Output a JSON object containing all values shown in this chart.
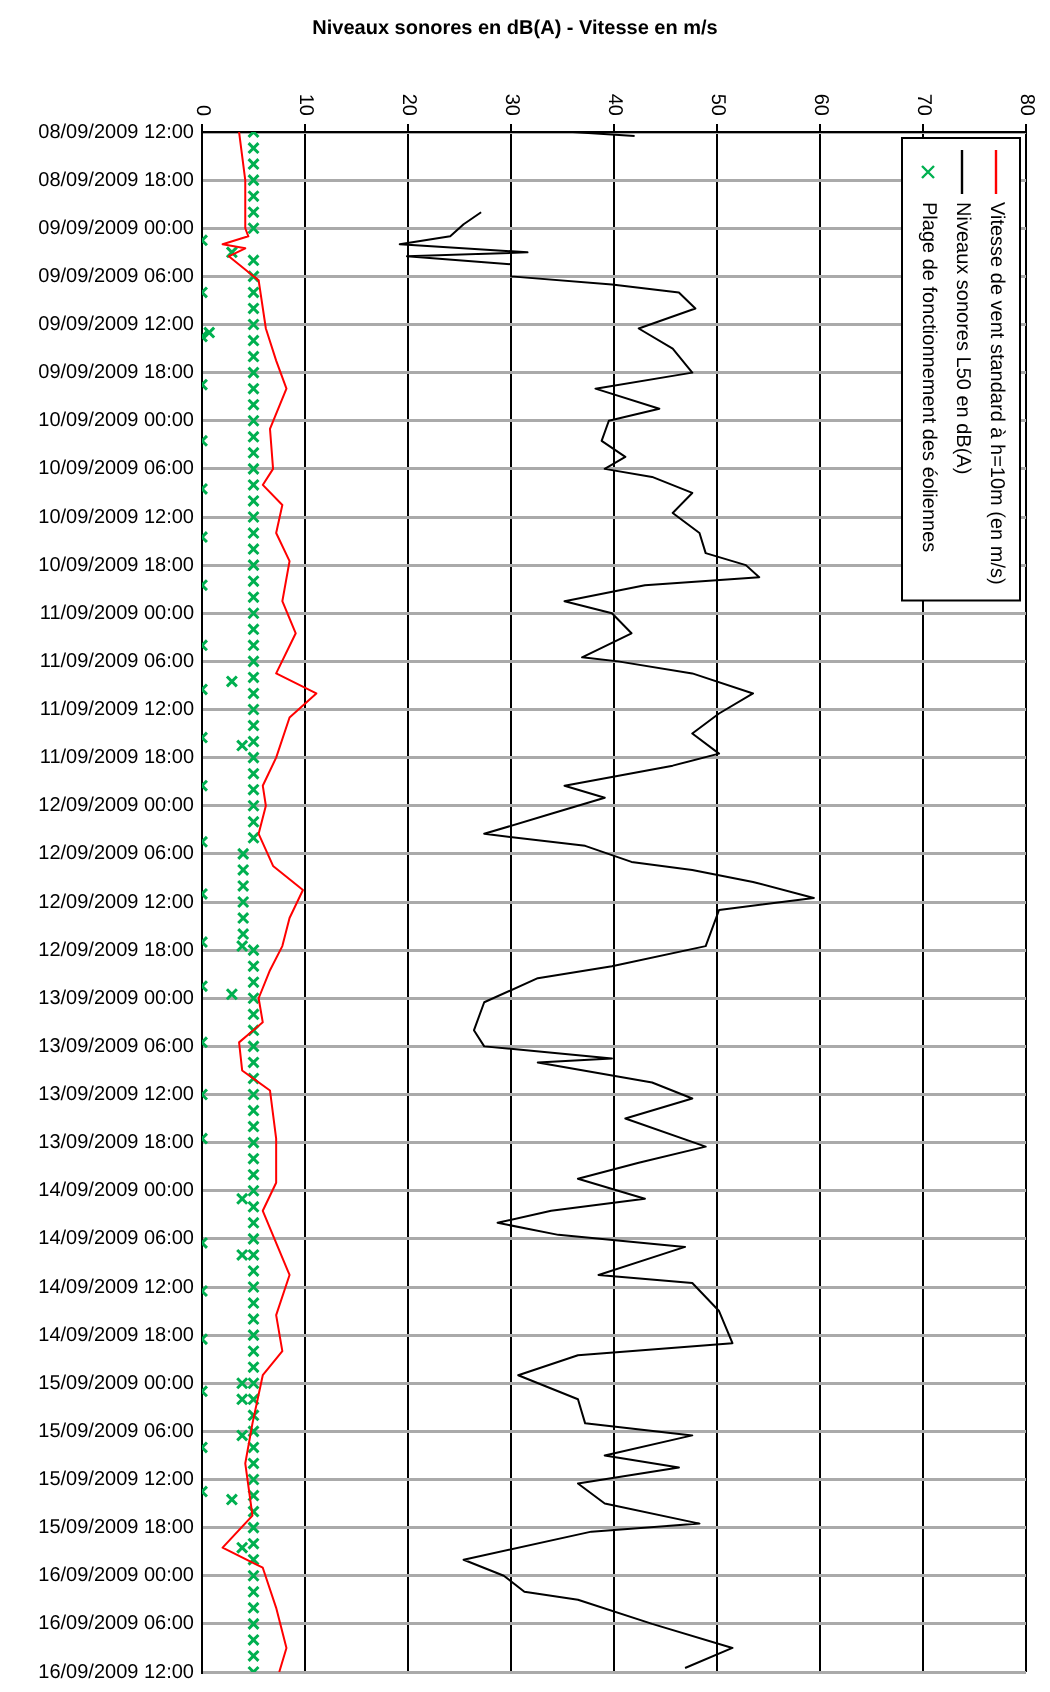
{
  "chart_data": {
    "type": "line",
    "title": "Niveaux sonores en dB(A) - Vitesse en m/s",
    "orientation": "horizontal",
    "xlim": [
      0,
      80
    ],
    "xticks": [
      0,
      10,
      20,
      30,
      40,
      50,
      60,
      70,
      80
    ],
    "ylim": [
      "2009-09-16T12:00",
      "2009-09-08T12:00"
    ],
    "yticks": [
      {
        "value": "2009-09-08T12:00",
        "label": "08/09/2009 12:00"
      },
      {
        "value": "2009-09-08T18:00",
        "label": "08/09/2009 18:00"
      },
      {
        "value": "2009-09-09T00:00",
        "label": "09/09/2009 00:00"
      },
      {
        "value": "2009-09-09T06:00",
        "label": "09/09/2009 06:00"
      },
      {
        "value": "2009-09-09T12:00",
        "label": "09/09/2009 12:00"
      },
      {
        "value": "2009-09-09T18:00",
        "label": "09/09/2009 18:00"
      },
      {
        "value": "2009-09-10T00:00",
        "label": "10/09/2009 00:00"
      },
      {
        "value": "2009-09-10T06:00",
        "label": "10/09/2009 06:00"
      },
      {
        "value": "2009-09-10T12:00",
        "label": "10/09/2009 12:00"
      },
      {
        "value": "2009-09-10T18:00",
        "label": "10/09/2009 18:00"
      },
      {
        "value": "2009-09-11T00:00",
        "label": "11/09/2009 00:00"
      },
      {
        "value": "2009-09-11T06:00",
        "label": "11/09/2009 06:00"
      },
      {
        "value": "2009-09-11T12:00",
        "label": "11/09/2009 12:00"
      },
      {
        "value": "2009-09-11T18:00",
        "label": "11/09/2009 18:00"
      },
      {
        "value": "2009-09-12T00:00",
        "label": "12/09/2009 00:00"
      },
      {
        "value": "2009-09-12T06:00",
        "label": "12/09/2009 06:00"
      },
      {
        "value": "2009-09-12T12:00",
        "label": "12/09/2009 12:00"
      },
      {
        "value": "2009-09-12T18:00",
        "label": "12/09/2009 18:00"
      },
      {
        "value": "2009-09-13T00:00",
        "label": "13/09/2009 00:00"
      },
      {
        "value": "2009-09-13T06:00",
        "label": "13/09/2009 06:00"
      },
      {
        "value": "2009-09-13T12:00",
        "label": "13/09/2009 12:00"
      },
      {
        "value": "2009-09-13T18:00",
        "label": "13/09/2009 18:00"
      },
      {
        "value": "2009-09-14T00:00",
        "label": "14/09/2009 00:00"
      },
      {
        "value": "2009-09-14T06:00",
        "label": "14/09/2009 06:00"
      },
      {
        "value": "2009-09-14T12:00",
        "label": "14/09/2009 12:00"
      },
      {
        "value": "2009-09-14T18:00",
        "label": "14/09/2009 18:00"
      },
      {
        "value": "2009-09-15T00:00",
        "label": "15/09/2009 00:00"
      },
      {
        "value": "2009-09-15T06:00",
        "label": "15/09/2009 06:00"
      },
      {
        "value": "2009-09-15T12:00",
        "label": "15/09/2009 12:00"
      },
      {
        "value": "2009-09-15T18:00",
        "label": "15/09/2009 18:00"
      },
      {
        "value": "2009-09-16T00:00",
        "label": "16/09/2009 00:00"
      },
      {
        "value": "2009-09-16T06:00",
        "label": "16/09/2009 06:00"
      },
      {
        "value": "2009-09-16T12:00",
        "label": "16/09/2009 12:00"
      }
    ],
    "grid": true,
    "legend": "top right",
    "series": [
      {
        "name": "Vitesse de vent standard à h=10m (en m/s)",
        "color": "#ff0000",
        "marker": "none",
        "x": [
          "2009-09-08T12:00",
          "2009-09-08T15:00",
          "2009-09-08T18:00",
          "2009-09-09T00:00",
          "2009-09-09T01:00",
          "2009-09-09T02:00",
          "2009-09-09T02:30",
          "2009-09-09T03:30",
          "2009-09-09T06:30",
          "2009-09-09T12:30",
          "2009-09-09T16:30",
          "2009-09-09T20:00",
          "2009-09-10T01:00",
          "2009-09-10T06:00",
          "2009-09-10T08:00",
          "2009-09-10T10:30",
          "2009-09-10T14:00",
          "2009-09-10T17:30",
          "2009-09-10T22:30",
          "2009-09-11T02:30",
          "2009-09-11T07:30",
          "2009-09-11T10:00",
          "2009-09-11T13:00",
          "2009-09-11T18:00",
          "2009-09-11T21:30",
          "2009-09-12T00:00",
          "2009-09-12T03:30",
          "2009-09-12T07:30",
          "2009-09-12T10:30",
          "2009-09-12T14:00",
          "2009-09-12T17:30",
          "2009-09-12T20:30",
          "2009-09-13T00:00",
          "2009-09-13T03:00",
          "2009-09-13T05:30",
          "2009-09-13T09:00",
          "2009-09-13T11:30",
          "2009-09-13T17:30",
          "2009-09-13T23:00",
          "2009-09-14T02:30",
          "2009-09-14T10:30",
          "2009-09-14T15:30",
          "2009-09-14T20:00",
          "2009-09-14T23:00",
          "2009-09-15T05:00",
          "2009-09-15T10:00",
          "2009-09-15T16:30",
          "2009-09-15T20:30",
          "2009-09-15T23:00",
          "2009-09-16T04:00",
          "2009-09-16T09:00",
          "2009-09-16T12:00"
        ],
        "values": [
          3.6,
          3.9,
          4.2,
          4.2,
          4.5,
          2,
          4.2,
          2.6,
          5.5,
          6.2,
          7.2,
          8.2,
          6.6,
          6.9,
          5.9,
          7.8,
          7.2,
          8.5,
          7.8,
          9.1,
          7.2,
          11.1,
          8.5,
          7.2,
          5.9,
          6.2,
          5.5,
          6.9,
          9.8,
          8.5,
          7.8,
          6.6,
          5.5,
          5.9,
          3.6,
          3.9,
          6.6,
          7.2,
          7.2,
          5.9,
          8.5,
          7.2,
          7.8,
          5.9,
          4.9,
          4.2,
          4.9,
          2,
          5.9,
          7.2,
          8.2,
          7.5
        ]
      },
      {
        "name": "Niveaux sonores L50 en dB(A)",
        "color": "#000000",
        "marker": "none",
        "x": [
          "2009-09-08T12:00",
          "2009-09-08T12:30",
          "2009-09-08T17:00",
          "2009-09-08T22:00",
          "2009-09-08T23:30",
          "2009-09-09T01:00",
          "2009-09-09T02:00",
          "2009-09-09T03:00",
          "2009-09-09T03:30",
          "2009-09-09T04:30",
          "2009-09-09T06:00",
          "2009-09-09T07:00",
          "2009-09-09T08:00",
          "2009-09-09T10:00",
          "2009-09-09T12:30",
          "2009-09-09T15:00",
          "2009-09-09T18:00",
          "2009-09-09T20:00",
          "2009-09-09T22:30",
          "2009-09-10T00:00",
          "2009-09-10T02:30",
          "2009-09-10T04:30",
          "2009-09-10T06:00",
          "2009-09-10T07:00",
          "2009-09-10T09:00",
          "2009-09-10T11:30",
          "2009-09-10T14:00",
          "2009-09-10T16:30",
          "2009-09-10T18:00",
          "2009-09-10T19:30",
          "2009-09-10T20:30",
          "2009-09-10T22:30",
          "2009-09-11T00:00",
          "2009-09-11T02:30",
          "2009-09-11T05:30",
          "2009-09-11T06:00",
          "2009-09-11T07:30",
          "2009-09-11T10:00",
          "2009-09-11T12:30",
          "2009-09-11T15:00",
          "2009-09-11T17:30",
          "2009-09-11T19:00",
          "2009-09-11T21:30",
          "2009-09-11T23:00",
          "2009-09-12T01:00",
          "2009-09-12T03:30",
          "2009-09-12T05:00",
          "2009-09-12T07:00",
          "2009-09-12T08:00",
          "2009-09-12T09:30",
          "2009-09-12T11:30",
          "2009-09-12T13:00",
          "2009-09-12T17:30",
          "2009-09-12T20:00",
          "2009-09-12T21:30",
          "2009-09-13T00:30",
          "2009-09-13T04:00",
          "2009-09-13T06:00",
          "2009-09-13T07:30",
          "2009-09-13T08:00",
          "2009-09-13T10:30",
          "2009-09-13T12:30",
          "2009-09-13T15:00",
          "2009-09-13T18:30",
          "2009-09-13T20:30",
          "2009-09-13T22:30",
          "2009-09-14T01:00",
          "2009-09-14T02:30",
          "2009-09-14T04:00",
          "2009-09-14T05:30",
          "2009-09-14T07:00",
          "2009-09-14T10:30",
          "2009-09-14T11:30",
          "2009-09-14T15:00",
          "2009-09-14T19:00",
          "2009-09-14T20:30",
          "2009-09-14T23:00",
          "2009-09-15T02:00",
          "2009-09-15T05:00",
          "2009-09-15T06:30",
          "2009-09-15T09:00",
          "2009-09-15T10:30",
          "2009-09-15T12:30",
          "2009-09-15T15:00",
          "2009-09-15T17:30",
          "2009-09-15T18:30",
          "2009-09-15T22:00",
          "2009-09-16T00:00",
          "2009-09-16T02:00",
          "2009-09-16T03:00",
          "2009-09-16T06:00",
          "2009-09-16T09:00",
          "2009-09-16T11:30"
        ],
        "values": [
          36,
          42,
          null,
          27.1,
          25.4,
          24.1,
          19.2,
          31.6,
          19.9,
          30,
          30,
          39.8,
          46.3,
          47.9,
          42.4,
          45.7,
          47.6,
          38.2,
          44.4,
          39.5,
          38.8,
          41.1,
          39.1,
          43.7,
          47.6,
          45.7,
          48.3,
          48.9,
          52.8,
          54.1,
          43,
          35.2,
          39.8,
          41.7,
          36.9,
          40.4,
          47.6,
          53.5,
          50.2,
          47.6,
          50.2,
          45.7,
          35.2,
          39.1,
          33.9,
          27.4,
          37.2,
          41.7,
          47.6,
          53.5,
          59.4,
          50.2,
          48.9,
          39.8,
          32.6,
          27.4,
          26.4,
          27.4,
          39.8,
          32.6,
          43.7,
          47.6,
          41.1,
          48.9,
          42.4,
          36.5,
          43,
          33.9,
          28.7,
          34.6,
          46.9,
          38.5,
          47.6,
          50.2,
          51.5,
          36.5,
          30.7,
          36.5,
          37.2,
          47.6,
          39.1,
          46.3,
          36.5,
          39.1,
          48.3,
          37.8,
          25.4,
          29.3,
          31.3,
          36.5,
          43.7,
          51.5,
          46.9
        ]
      },
      {
        "name": "Plage de fonctionnement des éoliennes",
        "type": "scatter",
        "color": "#00b050",
        "marker": "cross",
        "x": [
          "2009-09-08T12:00",
          "2009-09-08T14:00",
          "2009-09-08T16:00",
          "2009-09-08T18:00",
          "2009-09-08T20:00",
          "2009-09-08T22:00",
          "2009-09-09T00:00",
          "2009-09-09T04:00",
          "2009-09-09T06:00",
          "2009-09-09T08:00",
          "2009-09-09T10:00",
          "2009-09-09T12:00",
          "2009-09-09T14:00",
          "2009-09-09T16:00",
          "2009-09-09T18:00",
          "2009-09-09T20:00",
          "2009-09-09T22:00",
          "2009-09-10T00:00",
          "2009-09-10T02:00",
          "2009-09-10T04:00",
          "2009-09-10T06:00",
          "2009-09-10T08:00",
          "2009-09-10T10:00",
          "2009-09-10T12:00",
          "2009-09-10T14:00",
          "2009-09-10T16:00",
          "2009-09-10T18:00",
          "2009-09-10T20:00",
          "2009-09-10T22:00",
          "2009-09-11T00:00",
          "2009-09-11T02:00",
          "2009-09-11T04:00",
          "2009-09-11T06:00",
          "2009-09-11T08:00",
          "2009-09-11T10:00",
          "2009-09-11T12:00",
          "2009-09-11T14:00",
          "2009-09-11T16:00",
          "2009-09-11T18:00",
          "2009-09-11T20:00",
          "2009-09-11T22:00",
          "2009-09-12T00:00",
          "2009-09-12T02:00",
          "2009-09-12T04:00",
          "2009-09-12T06:00",
          "2009-09-12T08:00",
          "2009-09-12T10:00",
          "2009-09-12T12:00",
          "2009-09-12T14:00",
          "2009-09-12T16:00",
          "2009-09-12T18:00",
          "2009-09-12T20:00",
          "2009-09-12T22:00",
          "2009-09-13T00:00",
          "2009-09-13T02:00",
          "2009-09-13T04:00",
          "2009-09-13T06:00",
          "2009-09-13T08:00",
          "2009-09-13T10:00",
          "2009-09-13T12:00",
          "2009-09-13T14:00",
          "2009-09-13T16:00",
          "2009-09-13T18:00",
          "2009-09-13T20:00",
          "2009-09-13T22:00",
          "2009-09-14T00:00",
          "2009-09-14T02:00",
          "2009-09-14T04:00",
          "2009-09-14T06:00",
          "2009-09-14T08:00",
          "2009-09-14T10:00",
          "2009-09-14T12:00",
          "2009-09-14T14:00",
          "2009-09-14T16:00",
          "2009-09-14T18:00",
          "2009-09-14T20:00",
          "2009-09-14T22:00",
          "2009-09-15T00:00",
          "2009-09-15T02:00",
          "2009-09-15T04:00",
          "2009-09-15T06:00",
          "2009-09-15T08:00",
          "2009-09-15T10:00",
          "2009-09-15T12:00",
          "2009-09-15T14:00",
          "2009-09-15T16:00",
          "2009-09-15T18:00",
          "2009-09-15T20:00",
          "2009-09-15T22:00",
          "2009-09-16T00:00",
          "2009-09-16T02:00",
          "2009-09-16T04:00",
          "2009-09-16T06:00",
          "2009-09-16T08:00",
          "2009-09-16T10:00",
          "2009-09-16T12:00",
          "2009-09-09T01:30",
          "2009-09-09T08:00",
          "2009-09-09T13:30",
          "2009-09-09T19:30",
          "2009-09-10T02:30",
          "2009-09-10T08:30",
          "2009-09-10T14:30",
          "2009-09-10T20:30",
          "2009-09-11T04:00",
          "2009-09-11T09:30",
          "2009-09-11T15:30",
          "2009-09-11T21:30",
          "2009-09-12T04:30",
          "2009-09-12T11:00",
          "2009-09-12T17:00",
          "2009-09-12T22:30",
          "2009-09-13T05:30",
          "2009-09-13T12:00",
          "2009-09-13T17:30",
          "2009-09-14T06:30",
          "2009-09-14T12:30",
          "2009-09-14T18:30",
          "2009-09-15T01:00",
          "2009-09-15T08:00",
          "2009-09-15T13:30",
          "2009-09-09T03:00",
          "2009-09-09T13:00",
          "2009-09-11T08:30",
          "2009-09-11T16:30",
          "2009-09-12T17:30",
          "2009-09-12T23:30",
          "2009-09-14T01:00",
          "2009-09-14T08:00",
          "2009-09-15T00:00",
          "2009-09-15T02:00",
          "2009-09-15T06:30",
          "2009-09-15T14:30",
          "2009-09-15T20:30"
        ],
        "values": [
          5,
          5,
          5,
          5,
          5,
          5,
          5,
          5,
          5,
          5,
          5,
          5,
          5,
          5,
          5,
          5,
          5,
          5,
          5,
          5,
          5,
          5,
          5,
          5,
          5,
          5,
          5,
          5,
          5,
          5,
          5,
          5,
          5,
          5,
          5,
          5,
          5,
          5,
          5,
          5,
          5,
          5,
          5,
          5,
          4,
          4,
          4,
          4,
          4,
          4,
          5,
          5,
          5,
          5,
          5,
          5,
          5,
          5,
          5,
          5,
          5,
          5,
          5,
          5,
          5,
          5,
          5,
          5,
          5,
          5,
          5,
          5,
          5,
          5,
          5,
          5,
          5,
          5,
          5,
          5,
          5,
          5,
          5,
          5,
          5,
          5,
          5,
          5,
          5,
          5,
          5,
          5,
          5,
          5,
          5,
          5,
          0,
          0,
          0,
          0,
          0,
          0,
          0,
          0,
          0,
          0,
          0,
          0,
          0,
          0,
          0,
          0,
          0,
          0,
          0,
          0,
          0,
          0,
          0,
          0,
          0,
          2.9,
          0.7,
          2.9,
          3.9,
          3.9,
          2.9,
          3.9,
          3.9,
          3.9,
          3.9,
          3.9,
          2.9,
          3.9
        ]
      }
    ]
  }
}
